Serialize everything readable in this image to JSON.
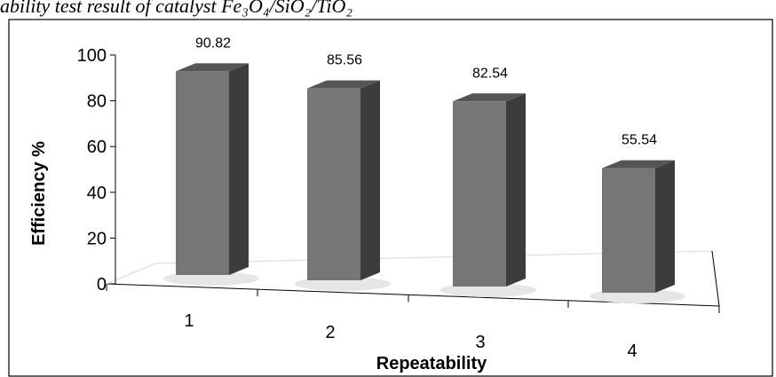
{
  "caption": "ability test result of catalyst Fe₃O₄/SiO₂/TiO₂",
  "colors": {
    "bar_front": "#767676",
    "bar_side": "#3c3c3c",
    "bar_top": "#555555",
    "frame": "#000000",
    "gridline": "#d9d9d9"
  },
  "chart_data": {
    "type": "bar",
    "style": "3d-column",
    "categories": [
      "1",
      "2",
      "3",
      "4"
    ],
    "values": [
      90.82,
      85.56,
      82.54,
      55.54
    ],
    "data_labels": [
      "90.82",
      "85.56",
      "82.54",
      "55.54"
    ],
    "xlabel": "Repeatability",
    "ylabel": "Efficiency  %",
    "ylim": [
      0,
      100
    ],
    "yticks": [
      "0",
      "20",
      "40",
      "60",
      "80",
      "100"
    ],
    "grid": false,
    "legend": "none"
  }
}
